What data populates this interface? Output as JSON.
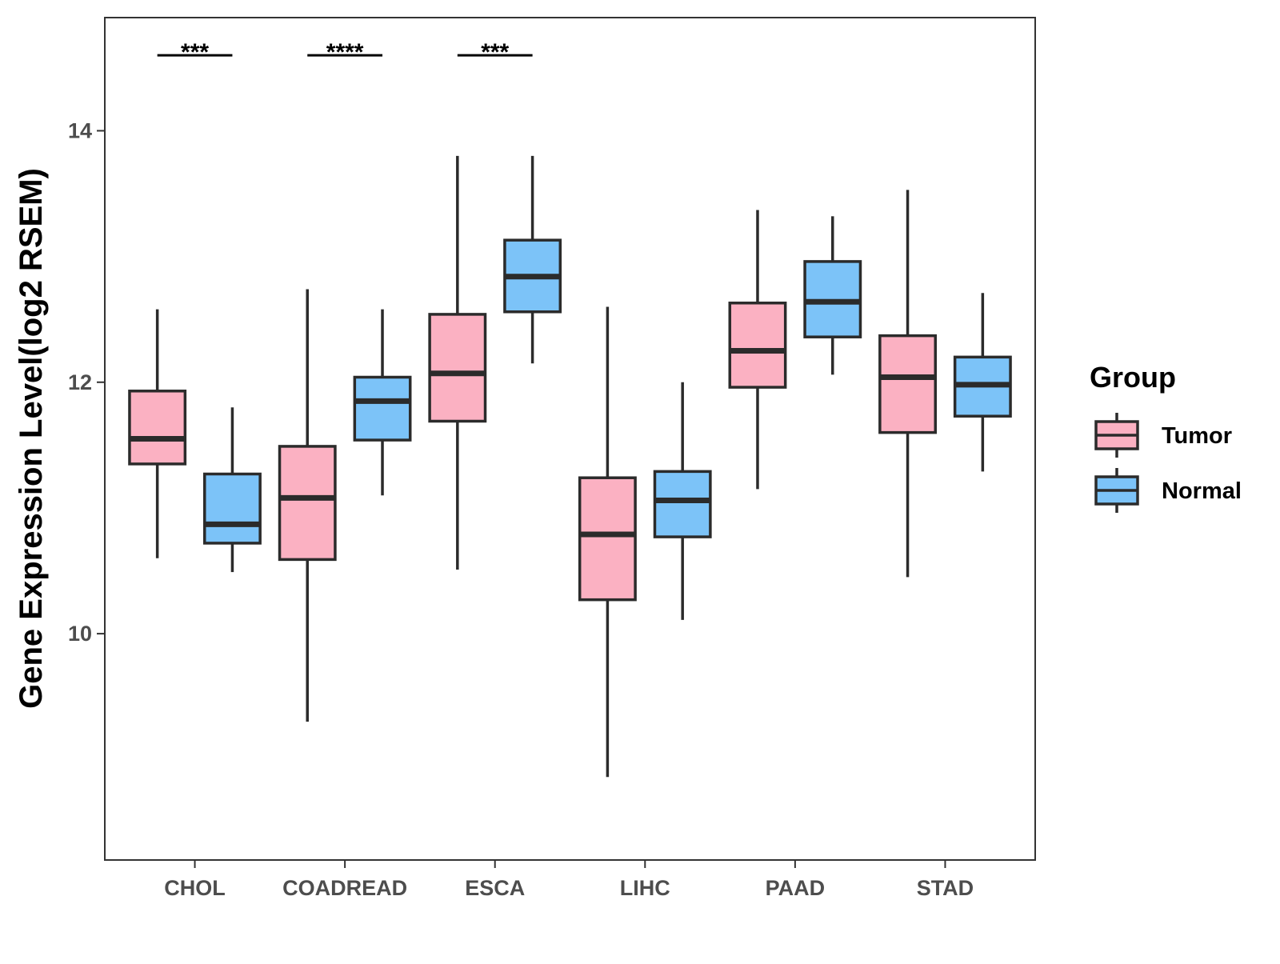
{
  "chart_data": {
    "type": "boxplot",
    "title": "",
    "xlabel": "",
    "ylabel": "Gene Expression Level(log2 RSEM)",
    "ylim": [
      8.2,
      14.9
    ],
    "yticks": [
      10,
      12,
      14
    ],
    "ytick_labels": [
      "10",
      "12",
      "14"
    ],
    "grid": false,
    "categories": [
      "CHOL",
      "COADREAD",
      "ESCA",
      "LIHC",
      "PAAD",
      "STAD"
    ],
    "legend": {
      "title": "Group",
      "position": "right",
      "entries": [
        {
          "name": "Tumor",
          "color": "#FBB1C2"
        },
        {
          "name": "Normal",
          "color": "#7CC3F8"
        }
      ]
    },
    "series": [
      {
        "name": "Tumor",
        "color": "#FBB1C2",
        "boxes": [
          {
            "category": "CHOL",
            "min": 10.6,
            "q1": 11.35,
            "median": 11.55,
            "q3": 11.93,
            "max": 12.58
          },
          {
            "category": "COADREAD",
            "min": 9.3,
            "q1": 10.59,
            "median": 11.08,
            "q3": 11.49,
            "max": 12.74
          },
          {
            "category": "ESCA",
            "min": 10.51,
            "q1": 11.69,
            "median": 12.07,
            "q3": 12.54,
            "max": 13.8
          },
          {
            "category": "LIHC",
            "min": 8.86,
            "q1": 10.27,
            "median": 10.79,
            "q3": 11.24,
            "max": 12.6
          },
          {
            "category": "PAAD",
            "min": 11.15,
            "q1": 11.96,
            "median": 12.25,
            "q3": 12.63,
            "max": 13.37
          },
          {
            "category": "STAD",
            "min": 10.45,
            "q1": 11.6,
            "median": 12.04,
            "q3": 12.37,
            "max": 13.53
          }
        ]
      },
      {
        "name": "Normal",
        "color": "#7CC3F8",
        "boxes": [
          {
            "category": "CHOL",
            "min": 10.49,
            "q1": 10.72,
            "median": 10.87,
            "q3": 11.27,
            "max": 11.8
          },
          {
            "category": "COADREAD",
            "min": 11.1,
            "q1": 11.54,
            "median": 11.85,
            "q3": 12.04,
            "max": 12.58
          },
          {
            "category": "ESCA",
            "min": 12.15,
            "q1": 12.56,
            "median": 12.84,
            "q3": 13.13,
            "max": 13.8
          },
          {
            "category": "LIHC",
            "min": 10.11,
            "q1": 10.77,
            "median": 11.06,
            "q3": 11.29,
            "max": 12.0
          },
          {
            "category": "PAAD",
            "min": 12.06,
            "q1": 12.36,
            "median": 12.64,
            "q3": 12.96,
            "max": 13.32
          },
          {
            "category": "STAD",
            "min": 11.29,
            "q1": 11.73,
            "median": 11.98,
            "q3": 12.2,
            "max": 12.71
          }
        ]
      }
    ],
    "significance": [
      {
        "category": "CHOL",
        "label": "***",
        "y": 14.6
      },
      {
        "category": "COADREAD",
        "label": "****",
        "y": 14.6
      },
      {
        "category": "ESCA",
        "label": "***",
        "y": 14.6
      }
    ]
  }
}
